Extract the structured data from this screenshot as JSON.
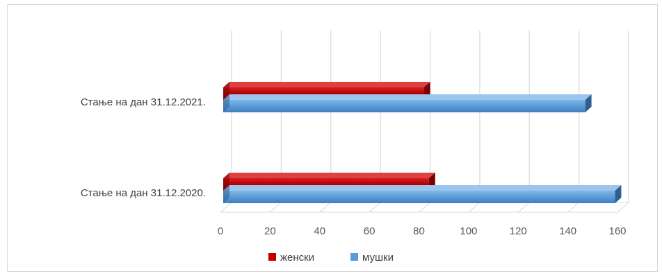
{
  "chart_data": {
    "type": "bar",
    "orientation": "horizontal",
    "style": "3d",
    "title": "",
    "xlabel": "",
    "ylabel": "",
    "categories": [
      "Стање на дан 31.12.2021.",
      "Стање на дан 31.12.2020."
    ],
    "series": [
      {
        "name": "женски",
        "values": [
          82,
          84
        ],
        "color": "#c00000"
      },
      {
        "name": "мушки",
        "values": [
          147,
          159
        ],
        "color": "#5b9bd5"
      }
    ],
    "xlim": [
      0,
      160
    ],
    "ticks": [
      "0",
      "20",
      "40",
      "60",
      "80",
      "100",
      "120",
      "140",
      "160"
    ],
    "grid": true,
    "legend_position": "bottom"
  }
}
